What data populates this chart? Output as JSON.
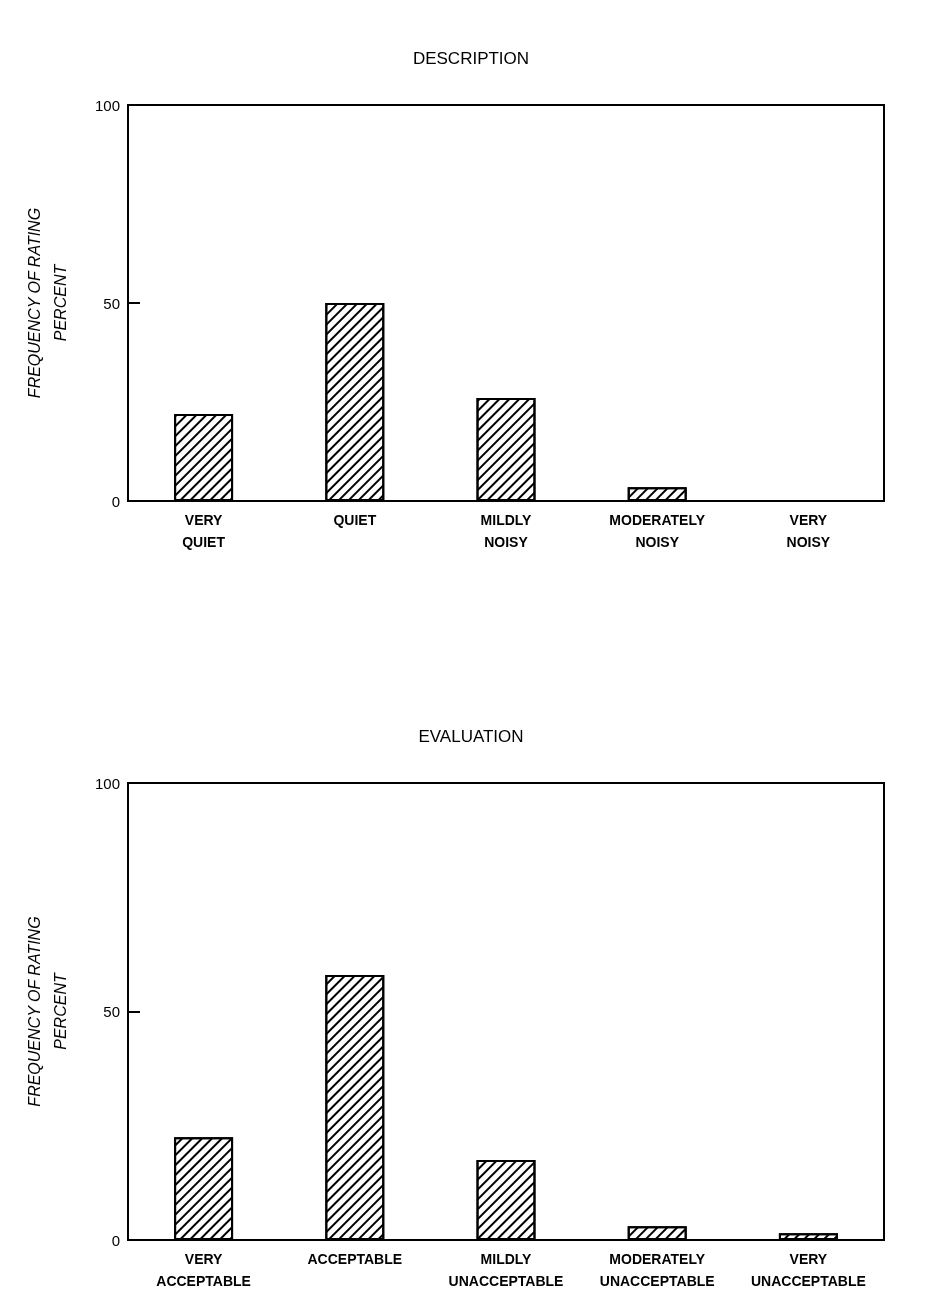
{
  "chart_data": [
    {
      "type": "bar",
      "title": "DESCRIPTION",
      "ylabel": "FREQUENCY OF RATING\nPERCENT",
      "categories": [
        "VERY\nQUIET",
        "QUIET",
        "MILDLY\nNOISY",
        "MODERATELY\nNOISY",
        "VERY\nNOISY"
      ],
      "values": [
        22,
        50,
        26,
        3.5,
        0
      ],
      "color": "#ffffff",
      "ylim": [
        0,
        100
      ],
      "yticks": [
        0,
        50,
        100
      ],
      "grid": false
    },
    {
      "type": "bar",
      "title": "EVALUATION",
      "ylabel": "FREQUENCY OF RATING\nPERCENT",
      "categories": [
        "VERY\nACCEPTABLE",
        "ACCEPTABLE",
        "MILDLY\nUNACCEPTABLE",
        "MODERATELY\nUNACCEPTABLE",
        "VERY\nUNACCEPTABLE"
      ],
      "values": [
        22.5,
        58,
        17.5,
        3,
        1.5
      ],
      "color": "#ffffff",
      "ylim": [
        0,
        100
      ],
      "yticks": [
        0,
        50,
        100
      ],
      "grid": false
    }
  ]
}
